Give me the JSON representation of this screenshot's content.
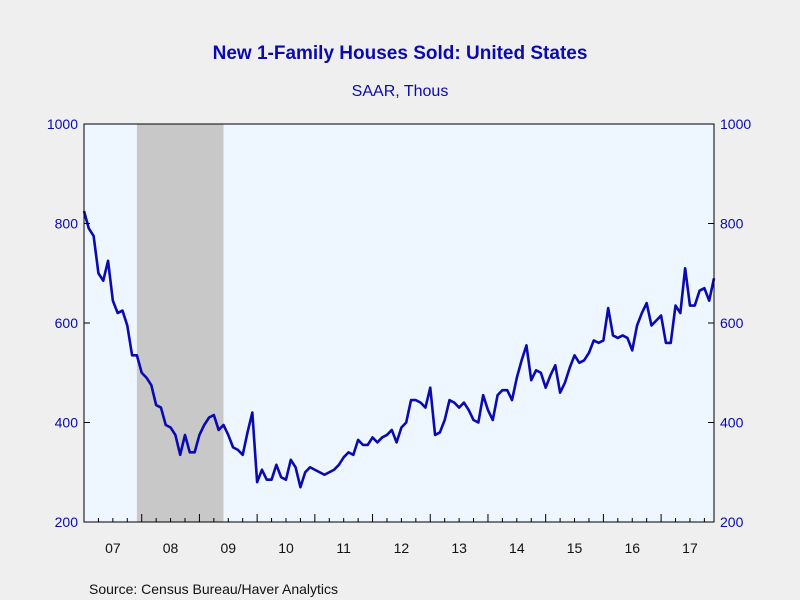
{
  "chart_data": {
    "type": "line",
    "title": "New 1-Family Houses Sold: United States",
    "subtitle": "SAAR, Thous",
    "source": "Source:  Census Bureau/Haver Analytics",
    "x_tick_labels": [
      "07",
      "08",
      "09",
      "10",
      "11",
      "12",
      "13",
      "14",
      "15",
      "16",
      "17"
    ],
    "x_tick_years": [
      2007,
      2008,
      2009,
      2010,
      2011,
      2012,
      2013,
      2014,
      2015,
      2016,
      2017
    ],
    "y_ticks": [
      200,
      400,
      600,
      800,
      1000
    ],
    "ylim": [
      200,
      1000
    ],
    "xlim": [
      "2007-01",
      "2017-12"
    ],
    "right_axis": true,
    "grid": false,
    "recession": {
      "start": "2007-12",
      "end": "2009-06",
      "color": "#c8c8c8"
    },
    "colors": {
      "line": "#0a0ab0",
      "plot_bg": "#eef6ff",
      "axis": "#000000"
    },
    "series": [
      {
        "start": "2007-01",
        "frequency": "monthly",
        "values": [
          825,
          790,
          775,
          700,
          685,
          725,
          645,
          620,
          625,
          595,
          535,
          535,
          500,
          490,
          475,
          435,
          430,
          395,
          390,
          375,
          335,
          375,
          340,
          340,
          375,
          395,
          410,
          415,
          385,
          395,
          375,
          350,
          345,
          335,
          380,
          420,
          280,
          305,
          285,
          285,
          315,
          290,
          285,
          325,
          310,
          270,
          300,
          310,
          305,
          300,
          295,
          300,
          305,
          315,
          330,
          340,
          335,
          365,
          355,
          355,
          370,
          360,
          370,
          375,
          385,
          360,
          390,
          400,
          445,
          445,
          440,
          430,
          470,
          375,
          380,
          405,
          445,
          440,
          430,
          440,
          425,
          405,
          400,
          455,
          425,
          405,
          455,
          465,
          465,
          445,
          490,
          525,
          555,
          485,
          505,
          500,
          470,
          495,
          515,
          460,
          480,
          510,
          535,
          520,
          525,
          540,
          565,
          560,
          565,
          630,
          575,
          570,
          575,
          570,
          545,
          595,
          620,
          640,
          595,
          605,
          615,
          560,
          560,
          635,
          620,
          710,
          635,
          635,
          665,
          670,
          645,
          690
        ]
      }
    ]
  }
}
